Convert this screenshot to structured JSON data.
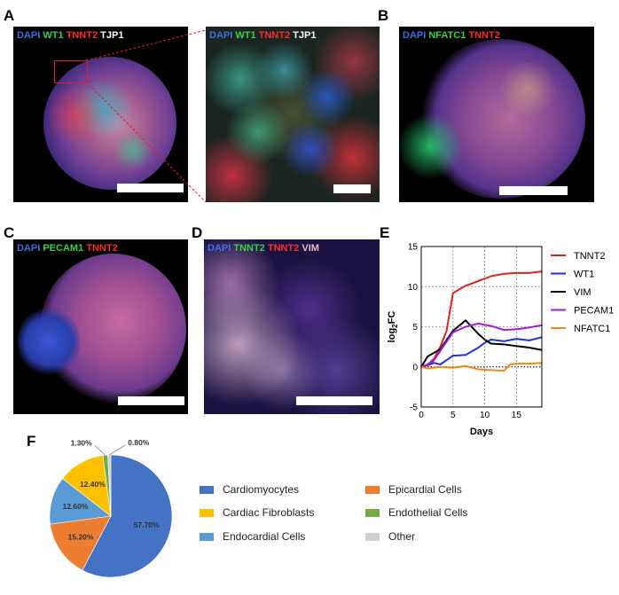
{
  "panels": {
    "A": {
      "label": "A",
      "stain": [
        "DAPI",
        "WT1",
        "TNNT2",
        "TJP1"
      ]
    },
    "A_zoom": {
      "stain": [
        "DAPI",
        "WT1",
        "TNNT2",
        "TJP1"
      ]
    },
    "B": {
      "label": "B",
      "stain": [
        "DAPI",
        "NFATC1",
        "TNNT2"
      ]
    },
    "C": {
      "label": "C",
      "stain": [
        "DAPI",
        "PECAM1",
        "TNNT2"
      ]
    },
    "D": {
      "label": "D",
      "stain": [
        "DAPI",
        "TNNT2",
        "TNNT2",
        "VIM"
      ]
    },
    "E": {
      "label": "E"
    },
    "F": {
      "label": "F"
    }
  },
  "colors": {
    "dapi": "#3a6fe0",
    "green": "#35d046",
    "red": "#ff2a2a",
    "white": "#ffffff"
  },
  "chart_data": [
    {
      "type": "line",
      "xlabel": "Days",
      "ylabel": "log2FC",
      "ylabel_main": "log",
      "ylabel_sub": "2",
      "ylabel_suffix": "FC",
      "xlim": [
        0,
        19
      ],
      "ylim": [
        -5,
        15
      ],
      "xticks": [
        0,
        5,
        10,
        15
      ],
      "yticks": [
        -5,
        0,
        5,
        10,
        15
      ],
      "grid": true,
      "legend_position": "right",
      "series": [
        {
          "name": "TNNT2",
          "color": "#e0231c",
          "x": [
            0,
            1,
            2,
            3,
            4,
            5,
            7,
            9,
            11,
            13,
            15,
            17,
            19
          ],
          "y": [
            0,
            0.3,
            1,
            2.5,
            4.5,
            9.2,
            10.1,
            10.7,
            11.3,
            11.6,
            11.7,
            11.7,
            11.9
          ]
        },
        {
          "name": "WT1",
          "color": "#1f33d6",
          "x": [
            0,
            1,
            2,
            3,
            5,
            7,
            9,
            10,
            11,
            13,
            15,
            17,
            19
          ],
          "y": [
            0,
            0.2,
            0.5,
            0.3,
            1.4,
            1.5,
            2.4,
            3.0,
            3.4,
            3.2,
            3.5,
            3.3,
            3.7
          ]
        },
        {
          "name": "VIM",
          "color": "#000000",
          "x": [
            0,
            1,
            3,
            5,
            7,
            9,
            10,
            11,
            13,
            15,
            17,
            19
          ],
          "y": [
            0,
            1.3,
            2.2,
            4.5,
            5.8,
            4.1,
            3.4,
            2.9,
            2.8,
            2.6,
            2.4,
            2.1
          ]
        },
        {
          "name": "PECAM1",
          "color": "#a31cd6",
          "x": [
            0,
            1,
            2,
            3,
            5,
            7,
            9,
            11,
            13,
            15,
            17,
            19
          ],
          "y": [
            0,
            0.3,
            0.8,
            2.0,
            4.3,
            5.0,
            5.4,
            5.1,
            4.6,
            4.7,
            4.9,
            5.2
          ]
        },
        {
          "name": "NFATC1",
          "color": "#f08a16",
          "x": [
            0,
            1,
            3,
            5,
            7,
            9,
            11,
            13,
            14,
            15,
            17,
            19
          ],
          "y": [
            0,
            -0.2,
            0.0,
            -0.1,
            0.1,
            -0.3,
            -0.4,
            -0.5,
            0.3,
            0.4,
            0.4,
            0.5
          ]
        }
      ]
    },
    {
      "type": "pie",
      "slices": [
        {
          "name": "Cardiomyocytes",
          "value": 57.7,
          "label": "57.70%",
          "color": "#4472c4"
        },
        {
          "name": "Epicardial Cells",
          "value": 15.2,
          "label": "15.20%",
          "color": "#ed7d31"
        },
        {
          "name": "Endocardial Cells",
          "value": 12.6,
          "label": "12.60%",
          "color": "#5b9bd5"
        },
        {
          "name": "Cardiac Fibroblasts",
          "value": 12.4,
          "label": "12.40%",
          "color": "#ffc000"
        },
        {
          "name": "Endothelial Cells",
          "value": 1.3,
          "label": "1.30%",
          "color": "#70ad47"
        },
        {
          "name": "Other",
          "value": 0.8,
          "label": "0.80%",
          "color": "#cfcfcf"
        }
      ],
      "legend": [
        "Cardiomyocytes",
        "Epicardial Cells",
        "Cardiac Fibroblasts",
        "Endothelial Cells",
        "Endocardial Cells",
        "Other"
      ]
    }
  ]
}
